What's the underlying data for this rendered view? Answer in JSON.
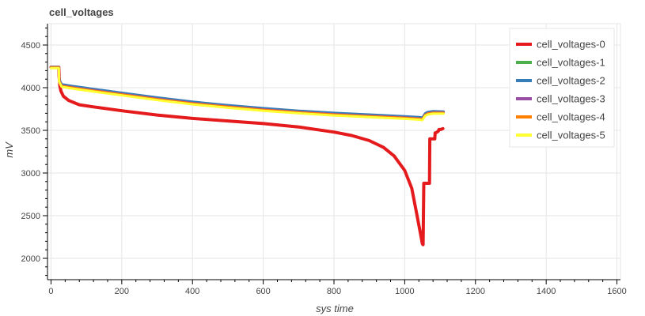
{
  "chart_data": {
    "type": "line",
    "title": "cell_voltages",
    "xlabel": "sys time",
    "ylabel": "mV",
    "xlim": [
      -10,
      1610
    ],
    "ylim": [
      1750,
      4750
    ],
    "xticks": [
      0,
      200,
      400,
      600,
      800,
      1000,
      1200,
      1400,
      1600
    ],
    "yticks": [
      2000,
      2500,
      3000,
      3500,
      4000,
      4500
    ],
    "grid": true,
    "legend_position": "top-right",
    "series": [
      {
        "name": "cell_voltages-0",
        "color": "#e41a1c",
        "x": [
          0,
          22,
          23,
          25,
          28,
          35,
          50,
          80,
          120,
          200,
          300,
          400,
          500,
          600,
          700,
          800,
          850,
          900,
          940,
          970,
          1000,
          1020,
          1035,
          1045,
          1050,
          1052,
          1054,
          1056,
          1058,
          1060,
          1070,
          1071,
          1073,
          1085,
          1086,
          1088,
          1095,
          1097,
          1102,
          1108
        ],
        "y": [
          4240,
          4240,
          4130,
          4020,
          3960,
          3900,
          3850,
          3800,
          3775,
          3730,
          3680,
          3640,
          3610,
          3580,
          3540,
          3480,
          3440,
          3380,
          3300,
          3200,
          3030,
          2820,
          2500,
          2280,
          2170,
          2160,
          2880,
          2880,
          2880,
          2880,
          2880,
          3400,
          3400,
          3400,
          3470,
          3470,
          3490,
          3510,
          3510,
          3520
        ]
      },
      {
        "name": "cell_voltages-1",
        "color": "#4daf4a",
        "x": [
          0,
          22,
          23,
          30,
          60,
          120,
          200,
          300,
          400,
          500,
          600,
          700,
          800,
          900,
          1000,
          1040,
          1050,
          1058,
          1065,
          1080,
          1110
        ],
        "y": [
          4240,
          4240,
          4090,
          4030,
          4010,
          3975,
          3930,
          3875,
          3825,
          3785,
          3750,
          3720,
          3695,
          3675,
          3655,
          3645,
          3640,
          3690,
          3705,
          3715,
          3715
        ]
      },
      {
        "name": "cell_voltages-2",
        "color": "#377eb8",
        "x": [
          0,
          22,
          23,
          30,
          60,
          120,
          200,
          300,
          400,
          500,
          600,
          700,
          800,
          900,
          1000,
          1040,
          1050,
          1058,
          1065,
          1080,
          1110
        ],
        "y": [
          4240,
          4240,
          4100,
          4040,
          4020,
          3985,
          3940,
          3885,
          3835,
          3795,
          3760,
          3730,
          3705,
          3685,
          3665,
          3655,
          3650,
          3700,
          3715,
          3725,
          3720
        ]
      },
      {
        "name": "cell_voltages-3",
        "color": "#984ea3",
        "x": [
          0,
          22,
          23,
          30,
          60,
          120,
          200,
          300,
          400,
          500,
          600,
          700,
          800,
          900,
          1000,
          1040,
          1050,
          1058,
          1065,
          1080,
          1110
        ],
        "y": [
          4235,
          4235,
          4085,
          4025,
          4005,
          3970,
          3925,
          3870,
          3820,
          3780,
          3745,
          3715,
          3690,
          3670,
          3650,
          3640,
          3635,
          3685,
          3700,
          3710,
          3710
        ]
      },
      {
        "name": "cell_voltages-4",
        "color": "#ff7f00",
        "x": [
          0,
          22,
          23,
          30,
          60,
          120,
          200,
          300,
          400,
          500,
          600,
          700,
          800,
          900,
          1000,
          1040,
          1050,
          1058,
          1065,
          1080,
          1110
        ],
        "y": [
          4235,
          4235,
          4080,
          4020,
          4000,
          3965,
          3920,
          3865,
          3815,
          3775,
          3740,
          3710,
          3685,
          3665,
          3645,
          3635,
          3630,
          3680,
          3695,
          3705,
          3705
        ]
      },
      {
        "name": "cell_voltages-5",
        "color": "#ffff33",
        "x": [
          0,
          22,
          23,
          30,
          60,
          120,
          200,
          300,
          400,
          500,
          600,
          700,
          800,
          900,
          1000,
          1040,
          1050,
          1058,
          1065,
          1080,
          1110
        ],
        "y": [
          4230,
          4230,
          4070,
          4010,
          3990,
          3955,
          3910,
          3855,
          3805,
          3765,
          3730,
          3700,
          3675,
          3655,
          3635,
          3625,
          3620,
          3670,
          3685,
          3695,
          3695
        ]
      }
    ]
  }
}
